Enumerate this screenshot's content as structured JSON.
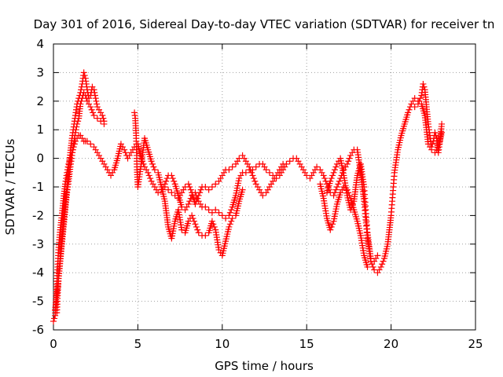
{
  "chart_data": {
    "type": "scatter",
    "title": "Day 301 of 2016, Sidereal Day-to-day VTEC variation (SDTVAR) for receiver tn",
    "xlabel": "GPS time / hours",
    "ylabel": "SDTVAR / TECUs",
    "xlim": [
      0,
      25
    ],
    "ylim": [
      -6,
      4
    ],
    "xticks": [
      0,
      5,
      10,
      15,
      20,
      25
    ],
    "yticks": [
      -6,
      -5,
      -4,
      -3,
      -2,
      -1,
      0,
      1,
      2,
      3,
      4
    ],
    "grid": true,
    "marker": "+",
    "color": "#ff0000",
    "series": [
      {
        "x": [
          0.0,
          0.1,
          0.2,
          0.3,
          0.4,
          0.5,
          0.6,
          0.7,
          0.8,
          0.9,
          1.0,
          1.1,
          1.2,
          1.3,
          1.4,
          1.5,
          1.6,
          1.7,
          1.8,
          1.9,
          2.0,
          2.2,
          2.4,
          2.6,
          2.8,
          3.0,
          3.2,
          3.4,
          3.6,
          3.8,
          4.0,
          4.2,
          4.4,
          4.6,
          4.8,
          5.0,
          5.2,
          5.4,
          5.6,
          5.8,
          6.0,
          6.2,
          6.4,
          6.6,
          6.8,
          7.0,
          7.2,
          7.4,
          7.6,
          7.8,
          8.0,
          8.2,
          8.4,
          8.6,
          8.8,
          9.0,
          9.2,
          9.4,
          9.6,
          9.8,
          10.0,
          10.2,
          10.4,
          10.6,
          10.8,
          11.0,
          11.2,
          11.4,
          11.6,
          11.8,
          12.0,
          12.2,
          12.4,
          12.6,
          12.8,
          13.0,
          13.2,
          13.4,
          13.6,
          13.8,
          14.0,
          14.2,
          14.4,
          14.6,
          14.8,
          15.0,
          15.2,
          15.4,
          15.6,
          15.8,
          16.0,
          16.2,
          16.4,
          16.6,
          16.8,
          17.0,
          17.2,
          17.4,
          17.6,
          17.8,
          18.0,
          18.2,
          18.4,
          18.6,
          18.8,
          19.0,
          19.2,
          19.4,
          19.6,
          19.8,
          20.0,
          20.2,
          20.4,
          20.6,
          20.8,
          21.0,
          21.2,
          21.4,
          21.6,
          21.8,
          22.0,
          22.2,
          22.4,
          22.6,
          22.8,
          23.0
        ],
        "y": [
          -5.7,
          -5.5,
          -4.4,
          -3.2,
          -2.5,
          -2.0,
          -1.4,
          -0.9,
          -0.5,
          -0.2,
          0.0,
          0.2,
          0.4,
          0.6,
          0.7,
          0.8,
          0.8,
          0.7,
          0.6,
          0.6,
          0.6,
          0.5,
          0.4,
          0.2,
          0.0,
          -0.2,
          -0.4,
          -0.6,
          -0.4,
          0.0,
          0.5,
          0.3,
          0.0,
          0.2,
          0.4,
          0.5,
          0.0,
          -0.3,
          -0.5,
          -0.8,
          -1.0,
          -1.2,
          -1.1,
          -0.9,
          -0.6,
          -0.6,
          -0.9,
          -1.3,
          -1.7,
          -1.8,
          -1.6,
          -1.3,
          -1.2,
          -1.5,
          -1.7,
          -1.7,
          -1.8,
          -1.9,
          -1.8,
          -1.9,
          -2.0,
          -2.1,
          -2.0,
          -1.7,
          -1.3,
          -0.7,
          -0.5,
          -0.5,
          -0.4,
          -0.4,
          -0.3,
          -0.2,
          -0.2,
          -0.4,
          -0.5,
          -0.6,
          -0.7,
          -0.6,
          -0.4,
          -0.2,
          -0.1,
          0.0,
          0.0,
          -0.2,
          -0.4,
          -0.6,
          -0.7,
          -0.5,
          -0.3,
          -0.4,
          -0.6,
          -0.9,
          -1.2,
          -1.3,
          -1.0,
          -0.7,
          -0.4,
          -0.2,
          0.1,
          0.3,
          0.3,
          -0.5,
          -1.5,
          -2.8,
          -3.6,
          -3.9,
          -4.0,
          -3.8,
          -3.5,
          -3.0,
          -2.0,
          -0.5,
          0.3,
          0.8,
          1.2,
          1.6,
          1.9,
          2.1,
          2.0,
          1.9,
          1.5,
          0.5,
          0.3,
          0.2,
          0.4,
          0.9
        ]
      },
      {
        "x": [
          0.1,
          0.2,
          0.3,
          0.4,
          0.5,
          0.6,
          0.7,
          0.8,
          0.9,
          1.0,
          1.1,
          1.2,
          1.3,
          1.4,
          1.5,
          1.6,
          1.7,
          1.8,
          1.9,
          2.0,
          2.1,
          2.2,
          2.3,
          2.4,
          2.5,
          2.6,
          2.7,
          2.8,
          2.9,
          3.0
        ],
        "y": [
          -5.3,
          -4.9,
          -4.2,
          -3.5,
          -2.8,
          -2.2,
          -1.6,
          -1.0,
          -0.4,
          0.2,
          0.7,
          1.1,
          1.5,
          1.9,
          2.1,
          2.3,
          2.6,
          3.0,
          2.8,
          2.4,
          2.1,
          2.2,
          2.5,
          2.4,
          2.1,
          1.8,
          1.7,
          1.6,
          1.5,
          1.3
        ]
      },
      {
        "x": [
          0.2,
          0.3,
          0.4,
          0.5,
          0.6,
          0.7,
          0.8,
          0.9,
          1.0,
          1.1,
          1.2,
          1.3,
          1.4,
          1.5,
          1.6,
          1.7,
          1.8,
          1.9,
          2.0,
          2.2,
          2.4,
          2.6,
          2.8,
          3.0
        ],
        "y": [
          -5.4,
          -4.2,
          -3.6,
          -3.0,
          -2.4,
          -1.8,
          -1.2,
          -0.8,
          -0.3,
          0.1,
          0.5,
          0.9,
          1.2,
          1.4,
          1.9,
          2.1,
          2.3,
          2.2,
          2.0,
          1.8,
          1.5,
          1.4,
          1.3,
          1.2
        ]
      },
      {
        "x": [
          4.8,
          4.85,
          4.9,
          4.95,
          5.0,
          5.2,
          5.4,
          5.6,
          5.8,
          6.0,
          6.2,
          6.4,
          6.6,
          6.8,
          7.0,
          7.2,
          7.4,
          7.6,
          7.8,
          8.0,
          8.2,
          8.4,
          8.6,
          8.8,
          9.0,
          9.2,
          9.4,
          9.6,
          9.8,
          10.0,
          10.2,
          10.4,
          10.6,
          10.8,
          11.0,
          11.2
        ],
        "y": [
          1.6,
          1.4,
          0.8,
          -0.4,
          -1.0,
          -0.2,
          0.7,
          0.3,
          -0.1,
          -0.4,
          -0.5,
          -1.0,
          -1.5,
          -2.4,
          -2.8,
          -2.2,
          -1.8,
          -2.5,
          -2.6,
          -2.2,
          -2.0,
          -2.3,
          -2.6,
          -2.7,
          -2.7,
          -2.6,
          -2.2,
          -2.5,
          -3.2,
          -3.4,
          -2.9,
          -2.4,
          -2.1,
          -2.0,
          -1.5,
          -1.1
        ]
      },
      {
        "x": [
          6.6,
          6.8,
          7.0,
          7.2,
          7.4,
          7.6,
          7.8,
          8.0,
          8.2,
          8.4,
          8.6,
          8.8,
          9.0,
          9.2,
          9.4,
          9.6,
          9.8,
          10.0,
          10.2,
          10.4,
          10.6,
          10.8,
          11.0,
          11.2,
          11.4,
          11.6,
          11.8,
          12.0,
          12.2,
          12.4,
          12.6,
          12.8,
          13.0,
          13.2,
          13.4,
          13.6
        ],
        "y": [
          -1.0,
          -1.1,
          -1.2,
          -1.3,
          -1.4,
          -1.2,
          -1.0,
          -0.9,
          -1.2,
          -1.6,
          -1.3,
          -1.0,
          -1.0,
          -1.1,
          -1.0,
          -0.9,
          -0.8,
          -0.6,
          -0.4,
          -0.4,
          -0.3,
          -0.2,
          0.0,
          0.1,
          -0.1,
          -0.3,
          -0.6,
          -0.9,
          -1.1,
          -1.3,
          -1.2,
          -1.0,
          -0.8,
          -0.6,
          -0.4,
          -0.2
        ]
      },
      {
        "x": [
          15.8,
          16.0,
          16.2,
          16.4,
          16.6,
          16.8,
          17.0,
          17.2,
          17.4,
          17.6,
          17.8,
          18.0,
          18.2,
          18.4,
          18.6
        ],
        "y": [
          -0.9,
          -1.4,
          -2.1,
          -2.5,
          -2.2,
          -1.6,
          -1.2,
          -1.0,
          -1.1,
          -1.4,
          -1.8,
          -2.2,
          -2.7,
          -3.4,
          -3.8
        ]
      },
      {
        "x": [
          16.2,
          16.4,
          16.6,
          16.8,
          17.0,
          17.2,
          17.4,
          17.6,
          17.8,
          18.0,
          18.2,
          18.4,
          18.6,
          18.8,
          19.0,
          19.2
        ],
        "y": [
          -1.2,
          -0.8,
          -0.5,
          -0.2,
          0.0,
          -0.6,
          -1.3,
          -1.8,
          -1.5,
          -0.6,
          -0.2,
          -1.0,
          -2.6,
          -3.5,
          -3.6,
          -3.4
        ]
      },
      {
        "x": [
          21.4,
          21.6,
          21.8,
          21.9,
          22.0,
          22.1,
          22.2,
          22.3,
          22.4,
          22.5,
          22.6,
          22.7,
          22.8,
          22.9,
          23.0
        ],
        "y": [
          1.8,
          1.9,
          2.2,
          2.6,
          2.4,
          1.8,
          1.2,
          0.8,
          0.4,
          0.6,
          0.9,
          0.7,
          0.2,
          0.6,
          1.2
        ]
      }
    ]
  }
}
